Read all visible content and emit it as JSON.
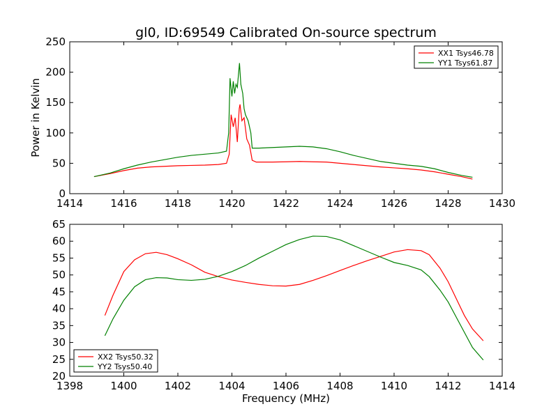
{
  "title": "gl0, ID:69549 Calibrated On-source spectrum",
  "chart_data": [
    {
      "type": "line",
      "ylabel": "Power in Kelvin",
      "xlabel": "",
      "xlim": [
        1414,
        1430
      ],
      "ylim": [
        0,
        250
      ],
      "xticks": [
        1414,
        1416,
        1418,
        1420,
        1422,
        1424,
        1426,
        1428,
        1430
      ],
      "yticks": [
        0,
        50,
        100,
        150,
        200,
        250
      ],
      "legend": "top-right",
      "grid": false,
      "series": [
        {
          "name": "XX1 Tsys46.78",
          "color": "#ff0000",
          "points": [
            [
              1414.9,
              28
            ],
            [
              1415.5,
              33
            ],
            [
              1416,
              38
            ],
            [
              1416.5,
              42
            ],
            [
              1417,
              44
            ],
            [
              1417.5,
              45
            ],
            [
              1418,
              46
            ],
            [
              1418.5,
              46.5
            ],
            [
              1419,
              47
            ],
            [
              1419.5,
              48
            ],
            [
              1419.8,
              50
            ],
            [
              1419.9,
              65
            ],
            [
              1419.97,
              130
            ],
            [
              1420.05,
              110
            ],
            [
              1420.12,
              125
            ],
            [
              1420.2,
              85
            ],
            [
              1420.27,
              140
            ],
            [
              1420.3,
              147
            ],
            [
              1420.37,
              120
            ],
            [
              1420.45,
              125
            ],
            [
              1420.55,
              90
            ],
            [
              1420.65,
              80
            ],
            [
              1420.75,
              55
            ],
            [
              1420.9,
              52
            ],
            [
              1421.5,
              52
            ],
            [
              1422,
              52.5
            ],
            [
              1422.5,
              53
            ],
            [
              1423,
              52.5
            ],
            [
              1423.5,
              52
            ],
            [
              1424,
              50
            ],
            [
              1424.5,
              48
            ],
            [
              1425,
              46
            ],
            [
              1425.5,
              44
            ],
            [
              1426,
              42.5
            ],
            [
              1426.5,
              41
            ],
            [
              1427,
              39
            ],
            [
              1427.5,
              36
            ],
            [
              1428,
              32
            ],
            [
              1428.5,
              28
            ],
            [
              1428.9,
              24
            ]
          ]
        },
        {
          "name": "YY1 Tsys61.87",
          "color": "#008000",
          "points": [
            [
              1414.9,
              28
            ],
            [
              1415.5,
              34
            ],
            [
              1416,
              41
            ],
            [
              1416.5,
              47
            ],
            [
              1417,
              52
            ],
            [
              1417.5,
              56
            ],
            [
              1418,
              60
            ],
            [
              1418.5,
              63
            ],
            [
              1419,
              65
            ],
            [
              1419.5,
              67
            ],
            [
              1419.8,
              70
            ],
            [
              1419.88,
              100
            ],
            [
              1419.93,
              190
            ],
            [
              1420,
              160
            ],
            [
              1420.05,
              185
            ],
            [
              1420.1,
              165
            ],
            [
              1420.15,
              180
            ],
            [
              1420.2,
              175
            ],
            [
              1420.28,
              215
            ],
            [
              1420.33,
              180
            ],
            [
              1420.4,
              165
            ],
            [
              1420.45,
              140
            ],
            [
              1420.5,
              130
            ],
            [
              1420.6,
              120
            ],
            [
              1420.7,
              100
            ],
            [
              1420.75,
              75
            ],
            [
              1421,
              75
            ],
            [
              1421.5,
              76
            ],
            [
              1422,
              77
            ],
            [
              1422.5,
              78
            ],
            [
              1423,
              77
            ],
            [
              1423.5,
              74
            ],
            [
              1424,
              69
            ],
            [
              1424.5,
              63
            ],
            [
              1425,
              58
            ],
            [
              1425.5,
              53
            ],
            [
              1426,
              50
            ],
            [
              1426.5,
              47
            ],
            [
              1427,
              45
            ],
            [
              1427.5,
              41
            ],
            [
              1428,
              35
            ],
            [
              1428.5,
              30
            ],
            [
              1428.9,
              27
            ]
          ]
        }
      ]
    },
    {
      "type": "line",
      "ylabel": "",
      "xlabel": "Frequency (MHz)",
      "xlim": [
        1398,
        1414
      ],
      "ylim": [
        20,
        65
      ],
      "xticks": [
        1398,
        1400,
        1402,
        1404,
        1406,
        1408,
        1410,
        1412,
        1414
      ],
      "yticks": [
        20,
        25,
        30,
        35,
        40,
        45,
        50,
        55,
        60,
        65
      ],
      "legend": "bottom-left",
      "grid": false,
      "series": [
        {
          "name": "XX2 Tsys50.32",
          "color": "#ff0000",
          "points": [
            [
              1399.3,
              38
            ],
            [
              1399.6,
              44
            ],
            [
              1400,
              51
            ],
            [
              1400.4,
              54.5
            ],
            [
              1400.8,
              56.3
            ],
            [
              1401.2,
              56.7
            ],
            [
              1401.6,
              56
            ],
            [
              1402,
              54.8
            ],
            [
              1402.5,
              53
            ],
            [
              1403,
              50.8
            ],
            [
              1403.5,
              49.5
            ],
            [
              1404,
              48.5
            ],
            [
              1404.5,
              47.8
            ],
            [
              1405,
              47.2
            ],
            [
              1405.5,
              46.8
            ],
            [
              1406,
              46.7
            ],
            [
              1406.5,
              47.2
            ],
            [
              1407,
              48.4
            ],
            [
              1407.5,
              49.8
            ],
            [
              1408,
              51.3
            ],
            [
              1408.5,
              52.8
            ],
            [
              1409,
              54.2
            ],
            [
              1409.5,
              55.5
            ],
            [
              1410,
              56.8
            ],
            [
              1410.5,
              57.5
            ],
            [
              1411,
              57.2
            ],
            [
              1411.3,
              56
            ],
            [
              1411.7,
              52
            ],
            [
              1412,
              48
            ],
            [
              1412.3,
              43
            ],
            [
              1412.6,
              38
            ],
            [
              1412.9,
              34
            ],
            [
              1413.3,
              30.5
            ]
          ]
        },
        {
          "name": "YY2 Tsys50.40",
          "color": "#008000",
          "points": [
            [
              1399.3,
              32
            ],
            [
              1399.6,
              37
            ],
            [
              1400,
              42.5
            ],
            [
              1400.4,
              46.5
            ],
            [
              1400.8,
              48.6
            ],
            [
              1401.2,
              49.2
            ],
            [
              1401.6,
              49.1
            ],
            [
              1402,
              48.6
            ],
            [
              1402.5,
              48.4
            ],
            [
              1403,
              48.7
            ],
            [
              1403.5,
              49.6
            ],
            [
              1404,
              51
            ],
            [
              1404.5,
              52.8
            ],
            [
              1405,
              55
            ],
            [
              1405.5,
              57
            ],
            [
              1406,
              59
            ],
            [
              1406.5,
              60.5
            ],
            [
              1407,
              61.5
            ],
            [
              1407.5,
              61.4
            ],
            [
              1408,
              60.4
            ],
            [
              1408.5,
              58.7
            ],
            [
              1409,
              57
            ],
            [
              1409.5,
              55.3
            ],
            [
              1410,
              53.7
            ],
            [
              1410.5,
              52.8
            ],
            [
              1411,
              51.5
            ],
            [
              1411.3,
              49.5
            ],
            [
              1411.7,
              45.5
            ],
            [
              1412,
              42
            ],
            [
              1412.3,
              37.5
            ],
            [
              1412.6,
              33
            ],
            [
              1412.9,
              28.5
            ],
            [
              1413.3,
              24.8
            ]
          ]
        }
      ]
    }
  ]
}
